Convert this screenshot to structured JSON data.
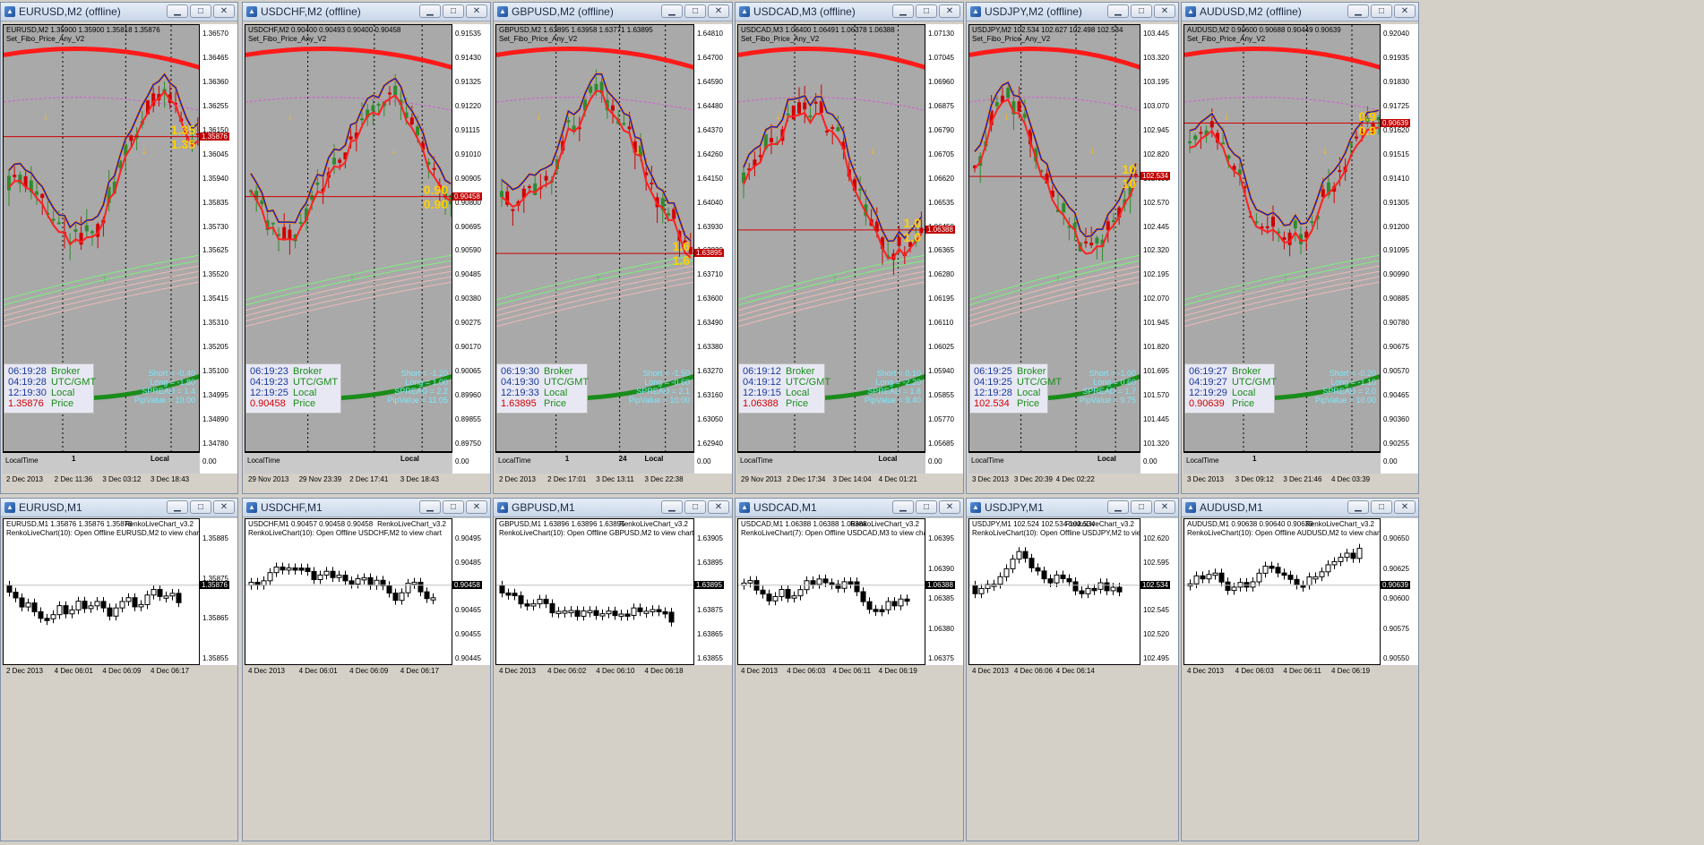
{
  "colors": {
    "chart_bg": "#a9a9a9",
    "bull": "#2e8b2e",
    "bear": "#d00000",
    "ma_thick_red": "#ff1a1a",
    "ma_thick_green": "#1a8c1a",
    "price_line": "#d00000",
    "info_blue": "#1a3a9c",
    "stats_cyan": "#7fe8f8",
    "signal_arrow": "#ffc000"
  },
  "top_charts": [
    {
      "id": "eurusd-m2",
      "window_title": "EURUSD,M2 (offline)",
      "header": "EURUSD,M2 1.35900 1.35900 1.35818 1.35876",
      "subtitle": "Set_Fibo_Price_Any_V2",
      "yticks": [
        "1.36570",
        "1.36465",
        "1.36360",
        "1.36255",
        "1.36150",
        "1.36045",
        "1.35940",
        "1.35835",
        "1.35730",
        "1.35625",
        "1.35520",
        "1.35415",
        "1.35310",
        "1.35205",
        "1.35100",
        "1.34995",
        "1.34890",
        "1.34780"
      ],
      "price_tag": "1.35876",
      "label_left": "1.35",
      "label_right": "1.35",
      "info": {
        "broker_time": "06:19:28",
        "utc_time": "04:19:28",
        "local_time": "12:19:30",
        "price": "1.35876"
      },
      "stats": {
        "short": "Short = -0.40",
        "long": "Long = -1.80",
        "spread": "SPREAD = 1.4",
        "pipvalue": "PipValue = 10.00"
      },
      "timebar_left": "LocalTime",
      "timebar_mid": "1",
      "timebar_right": "Local",
      "xticks": [
        "2 Dec 2013",
        "2 Dec 11:36",
        "3 Dec 03:12",
        "3 Dec 18:43"
      ]
    },
    {
      "id": "usdchf-m2",
      "window_title": "USDCHF,M2 (offline)",
      "header": "USDCHF,M2 0.90400 0.90493 0.90400 0.90458",
      "subtitle": "Set_Fibo_Price_Any_V2",
      "yticks": [
        "0.91535",
        "0.91430",
        "0.91325",
        "0.91220",
        "0.91115",
        "0.91010",
        "0.90905",
        "0.90800",
        "0.90695",
        "0.90590",
        "0.90485",
        "0.90380",
        "0.90275",
        "0.90170",
        "0.90065",
        "0.89960",
        "0.89855",
        "0.89750"
      ],
      "price_tag": "0.90458",
      "label_left": "0.90",
      "label_right": "0.90",
      "info": {
        "broker_time": "06:19:23",
        "utc_time": "04:19:23",
        "local_time": "12:19:25",
        "price": "0.90458"
      },
      "stats": {
        "short": "Short = -1.20",
        "long": "Long = 1.00",
        "spread": "SPREAD = 2.2",
        "pipvalue": "PipValue = 11.05"
      },
      "timebar_left": "LocalTime",
      "timebar_mid": "",
      "timebar_right": "Local",
      "xticks": [
        "29 Nov 2013",
        "29 Nov 23:39",
        "2 Dec 17:41",
        "3 Dec 18:43"
      ]
    },
    {
      "id": "gbpusd-m2",
      "window_title": "GBPUSD,M2 (offline)",
      "header": "GBPUSD,M2 1.63895 1.63958 1.63771 1.63895",
      "subtitle": "Set_Fibo_Price_Any_V2",
      "yticks": [
        "1.64810",
        "1.64700",
        "1.64590",
        "1.64480",
        "1.64370",
        "1.64260",
        "1.64150",
        "1.64040",
        "1.63930",
        "1.63820",
        "1.63710",
        "1.63600",
        "1.63490",
        "1.63380",
        "1.63270",
        "1.63160",
        "1.63050",
        "1.62940"
      ],
      "price_tag": "1.63895",
      "label_left": "1.6",
      "label_right": "1.6",
      "info": {
        "broker_time": "06:19:30",
        "utc_time": "04:19:30",
        "local_time": "12:19:33",
        "price": "1.63895"
      },
      "stats": {
        "short": "Short = -1.50",
        "long": "Long = -0.60",
        "spread": "SPREAD = 2.1",
        "pipvalue": "PipValue = 10.00"
      },
      "timebar_left": "LocalTime",
      "timebar_mid": "1",
      "timebar_right": "Local",
      "timebar_mid2": "24",
      "xticks": [
        "2 Dec 2013",
        "2 Dec 17:01",
        "3 Dec 13:11",
        "3 Dec 22:38"
      ]
    },
    {
      "id": "usdcad-m3",
      "window_title": "USDCAD,M3 (offline)",
      "header": "USDCAD,M3 1.06400 1.06491 1.06378 1.06388",
      "subtitle": "Set_Fibo_Price_Any_V2",
      "yticks": [
        "1.07130",
        "1.07045",
        "1.06960",
        "1.06875",
        "1.06790",
        "1.06705",
        "1.06620",
        "1.06535",
        "1.06450",
        "1.06365",
        "1.06280",
        "1.06195",
        "1.06110",
        "1.06025",
        "1.05940",
        "1.05855",
        "1.05770",
        "1.05685"
      ],
      "price_tag": "1.06388",
      "label_left": "1.0",
      "label_right": "1.0",
      "info": {
        "broker_time": "06:19:12",
        "utc_time": "04:19:12",
        "local_time": "12:19:15",
        "price": "1.06388"
      },
      "stats": {
        "short": "Short = 0.10",
        "long": "Long = -2.20",
        "spread": "SPREAD = 1.8",
        "pipvalue": "PipValue = 9.40"
      },
      "timebar_left": "LocalTime",
      "timebar_mid": "",
      "timebar_right": "Local",
      "xticks": [
        "29 Nov 2013",
        "2 Dec 17:34",
        "3 Dec 14:04",
        "4 Dec 01:21"
      ]
    },
    {
      "id": "usdjpy-m2",
      "window_title": "USDJPY,M2 (offline)",
      "header": "USDJPY,M2 102.534 102.627 102.498 102.534",
      "subtitle": "Set_Fibo_Price_Any_V2",
      "yticks": [
        "103.445",
        "103.320",
        "103.195",
        "103.070",
        "102.945",
        "102.820",
        "102.695",
        "102.570",
        "102.445",
        "102.320",
        "102.195",
        "102.070",
        "101.945",
        "101.820",
        "101.695",
        "101.570",
        "101.445",
        "101.320"
      ],
      "price_tag": "102.534",
      "label_left": "10",
      "label_right": "10",
      "info": {
        "broker_time": "06:19:25",
        "utc_time": "04:19:25",
        "local_time": "12:19:28",
        "price": "102.534"
      },
      "stats": {
        "short": "Short = -1.00",
        "long": "Long = 0.60",
        "spread": "SPREAD = 1.7",
        "pipvalue": "PipValue = 9.75"
      },
      "timebar_left": "LocalTime",
      "timebar_mid": "",
      "timebar_right": "Local",
      "xticks": [
        "3 Dec 2013",
        "3 Dec 20:39",
        "4 Dec 02:22",
        ""
      ]
    },
    {
      "id": "audusd-m2",
      "window_title": "AUDUSD,M2 (offline)",
      "header": "AUDUSD,M2 0.90600 0.90688 0.90449 0.90639",
      "subtitle": "Set_Fibo_Price_Any_V2",
      "yticks": [
        "0.92040",
        "0.91935",
        "0.91830",
        "0.91725",
        "0.91620",
        "0.91515",
        "0.91410",
        "0.91305",
        "0.91200",
        "0.91095",
        "0.90990",
        "0.90885",
        "0.90780",
        "0.90675",
        "0.90570",
        "0.90465",
        "0.90360",
        "0.90255"
      ],
      "price_tag": "0.90639",
      "label_left": "0.9",
      "label_right": "0.9",
      "info": {
        "broker_time": "06:19:27",
        "utc_time": "04:19:27",
        "local_time": "12:19:29",
        "price": "0.90639"
      },
      "stats": {
        "short": "Short = -0.20",
        "long": "Long = -1.10",
        "spread": "SPREAD = 2.0",
        "pipvalue": "PipValue = 10.00"
      },
      "timebar_left": "LocalTime",
      "timebar_mid": "1",
      "timebar_right": "",
      "xticks": [
        "3 Dec 2013",
        "3 Dec 09:12",
        "3 Dec 21:46",
        "4 Dec 03:39"
      ]
    }
  ],
  "info_labels": {
    "broker": "Broker",
    "utc": "UTC/GMT",
    "local": "Local",
    "price": "Price"
  },
  "subwindow_scale": "0.00",
  "bottom_charts": [
    {
      "id": "eurusd-m1",
      "window_title": "EURUSD,M1",
      "header": "EURUSD,M1 1.35876 1.35876 1.35876",
      "overlay": "RenkoLiveChart_v3.2",
      "subtitle": "RenkoLiveChart(10): Open Offline EURUSD,M2 to view chart",
      "yticks": [
        "1.35885",
        "1.35875",
        "1.35865",
        "1.35855"
      ],
      "price_tag": "1.35876",
      "xticks": [
        "2 Dec 2013",
        "4 Dec 06:01",
        "4 Dec 06:09",
        "4 Dec 06:17"
      ]
    },
    {
      "id": "usdchf-m1",
      "window_title": "USDCHF,M1",
      "header": "USDCHF,M1 0.90457 0.90458 0.90458",
      "overlay": "RenkoLiveChart_v3.2",
      "subtitle": "RenkoLiveChart(10): Open Offline USDCHF,M2 to view chart",
      "yticks": [
        "0.90495",
        "0.90485",
        "0.90475",
        "0.90465",
        "0.90455",
        "0.90445"
      ],
      "price_tag": "0.90458",
      "xticks": [
        "4 Dec 2013",
        "4 Dec 06:01",
        "4 Dec 06:09",
        "4 Dec 06:17"
      ]
    },
    {
      "id": "gbpusd-m1",
      "window_title": "GBPUSD,M1",
      "header": "GBPUSD,M1 1.63896 1.63896 1.63895",
      "overlay": "RenkoLiveChart_v3.2",
      "subtitle": "RenkoLiveChart(10): Open Offline GBPUSD,M2 to view chart",
      "yticks": [
        "1.63905",
        "1.63895",
        "1.63885",
        "1.63875",
        "1.63865",
        "1.63855"
      ],
      "price_tag": "1.63895",
      "xticks": [
        "4 Dec 2013",
        "4 Dec 06:02",
        "4 Dec 06:10",
        "4 Dec 06:18"
      ]
    },
    {
      "id": "usdcad-m1",
      "window_title": "USDCAD,M1",
      "header": "USDCAD,M1 1.06388 1.06388 1.06388",
      "overlay": "RenkoLiveChart_v3.2",
      "subtitle": "RenkoLiveChart(7): Open Offline USDCAD,M3 to view chart",
      "yticks": [
        "1.06395",
        "1.06390",
        "1.06385",
        "1.06380",
        "1.06375"
      ],
      "price_tag": "1.06388",
      "xticks": [
        "4 Dec 2013",
        "4 Dec 06:03",
        "4 Dec 06:11",
        "4 Dec 06:19"
      ]
    },
    {
      "id": "usdjpy-m1",
      "window_title": "USDJPY,M1",
      "header": "USDJPY,M1 102.524 102.534 102.534",
      "overlay": "RenkoLiveChart_v3.2",
      "subtitle": "RenkoLiveChart(10): Open Offline USDJPY,M2 to view chart",
      "yticks": [
        "102.620",
        "102.595",
        "102.570",
        "102.545",
        "102.520",
        "102.495"
      ],
      "price_tag": "102.534",
      "xticks": [
        "4 Dec 2013",
        "4 Dec 06:06",
        "4 Dec 06:14",
        ""
      ]
    },
    {
      "id": "audusd-m1",
      "window_title": "AUDUSD,M1",
      "header": "AUDUSD,M1 0.90638 0.90640 0.90639",
      "overlay": "RenkoLiveChart_v3.2",
      "subtitle": "RenkoLiveChart(10): Open Offline AUDUSD,M2 to view chart",
      "yticks": [
        "0.90650",
        "0.90625",
        "0.90600",
        "0.90575",
        "0.90550"
      ],
      "price_tag": "0.90639",
      "xticks": [
        "4 Dec 2013",
        "4 Dec 06:03",
        "4 Dec 06:11",
        "4 Dec 06:19"
      ]
    }
  ],
  "window_buttons": {
    "minimize": "▁",
    "maximize": "□",
    "close": "✕"
  }
}
